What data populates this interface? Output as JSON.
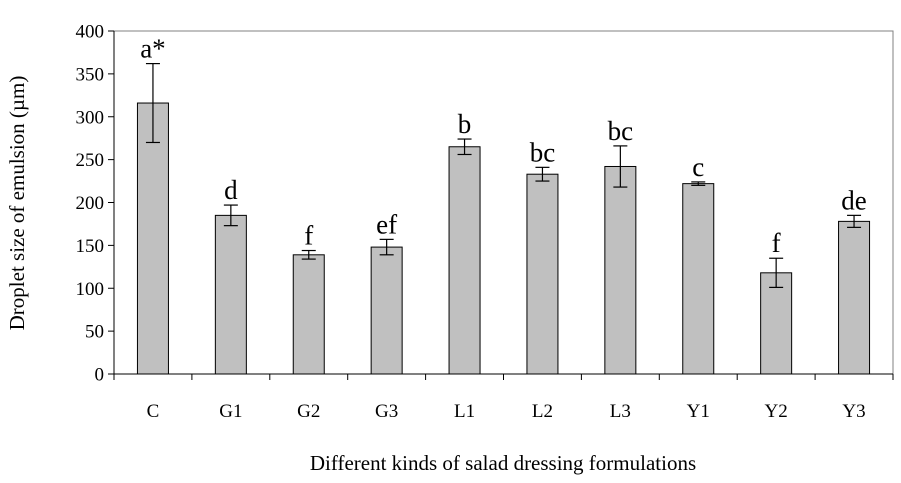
{
  "chart_data": {
    "type": "bar",
    "title": "",
    "xlabel": "Different kinds of salad dressing formulations",
    "ylabel": "Droplet size of emulsion (µm)",
    "ylim": [
      0,
      400
    ],
    "yticks": [
      0,
      50,
      100,
      150,
      200,
      250,
      300,
      350,
      400
    ],
    "grid": false,
    "categories": [
      "C",
      "G1",
      "G2",
      "G3",
      "L1",
      "L2",
      "L3",
      "Y1",
      "Y2",
      "Y3"
    ],
    "values": [
      316,
      185,
      139,
      148,
      265,
      233,
      242,
      222,
      118,
      178
    ],
    "errors": [
      46,
      12,
      5,
      9,
      9,
      8,
      24,
      2,
      17,
      7
    ],
    "significance_labels": [
      "a*",
      "d",
      "f",
      "ef",
      "b",
      "bc",
      "bc",
      "c",
      "f",
      "de"
    ],
    "colors": {
      "bar_fill": "#c0c0c0",
      "bar_stroke": "#000000",
      "frame": "#808080"
    }
  }
}
